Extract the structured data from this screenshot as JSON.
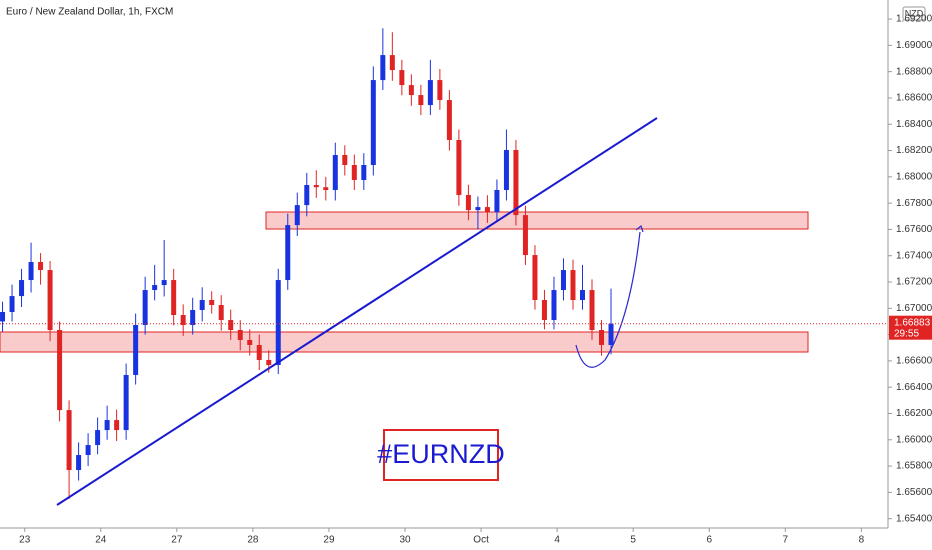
{
  "chart_data": {
    "type": "candlestick",
    "title": "Euro / New Zealand Dollar, 1h, FXCM",
    "currency": "NZD",
    "symbol": "#EURNZD",
    "last_price": 1.66883,
    "countdown": "29:55",
    "up_color": "#1a33e0",
    "down_color": "#e02424",
    "x": [
      -7,
      -4,
      -1,
      2,
      5,
      8,
      11,
      14,
      17,
      20,
      23,
      26,
      29,
      32,
      35,
      38,
      41,
      44,
      47,
      50,
      53,
      56,
      59,
      62,
      65,
      68,
      71,
      74,
      77,
      80,
      83,
      86,
      89,
      92,
      95,
      98,
      101,
      104,
      107,
      110,
      113,
      116,
      119,
      122,
      125,
      128,
      131,
      134,
      137,
      140,
      143,
      146,
      149,
      152,
      155,
      158,
      161,
      164,
      167,
      170,
      173,
      176,
      179,
      182,
      185
    ],
    "open": [
      1.669,
      1.66972,
      1.67093,
      1.67215,
      1.67352,
      1.67291,
      1.66835,
      1.66226,
      1.6577,
      1.65884,
      1.6596,
      1.66074,
      1.6615,
      1.66074,
      1.66493,
      1.66873,
      1.67139,
      1.67177,
      1.67215,
      1.66949,
      1.66873,
      1.66987,
      1.67063,
      1.67025,
      1.66911,
      1.66835,
      1.66759,
      1.66721,
      1.66607,
      1.66569,
      1.67215,
      1.67633,
      1.67785,
      1.67938,
      1.67921,
      1.679,
      1.68166,
      1.6809,
      1.67976,
      1.6809,
      1.68736,
      1.68926,
      1.68812,
      1.68698,
      1.68622,
      1.68546,
      1.68736,
      1.68584,
      1.6828,
      1.67862,
      1.67747,
      1.6777,
      1.67731,
      1.679,
      1.68204,
      1.67709,
      1.67405,
      1.67063,
      1.66911,
      1.67139,
      1.67291,
      1.67063,
      1.67139,
      1.66835,
      1.66721
    ],
    "high": [
      1.6705,
      1.6718,
      1.673,
      1.675,
      1.6742,
      1.6736,
      1.669,
      1.663,
      1.6598,
      1.6605,
      1.6617,
      1.6626,
      1.6623,
      1.6658,
      1.6696,
      1.6724,
      1.6733,
      1.6752,
      1.673,
      1.6703,
      1.6708,
      1.6716,
      1.6713,
      1.671,
      1.6699,
      1.6691,
      1.6684,
      1.668,
      1.6668,
      1.673,
      1.6772,
      1.6788,
      1.6803,
      1.6805,
      1.68,
      1.6826,
      1.6824,
      1.6817,
      1.6818,
      1.6884,
      1.6913,
      1.691,
      1.6889,
      1.6878,
      1.687,
      1.6889,
      1.6882,
      1.6866,
      1.6836,
      1.6794,
      1.6785,
      1.6786,
      1.6798,
      1.6836,
      1.6828,
      1.6778,
      1.6748,
      1.6714,
      1.6724,
      1.6738,
      1.6737,
      1.6733,
      1.6722,
      1.6691,
      1.6715
    ],
    "low": [
      1.6682,
      1.669,
      1.6701,
      1.6712,
      1.6718,
      1.6675,
      1.6614,
      1.6555,
      1.6569,
      1.658,
      1.6589,
      1.66,
      1.6599,
      1.66,
      1.6642,
      1.668,
      1.6706,
      1.6709,
      1.6687,
      1.6679,
      1.668,
      1.669,
      1.6696,
      1.6683,
      1.6676,
      1.6668,
      1.6664,
      1.6653,
      1.6651,
      1.665,
      1.6714,
      1.6755,
      1.677,
      1.6784,
      1.6782,
      1.6782,
      1.6801,
      1.679,
      1.679,
      1.6801,
      1.6866,
      1.6873,
      1.6862,
      1.6854,
      1.6847,
      1.6847,
      1.6851,
      1.682,
      1.6778,
      1.6767,
      1.676,
      1.6765,
      1.6766,
      1.6782,
      1.6763,
      1.6733,
      1.6699,
      1.6684,
      1.6684,
      1.6706,
      1.6699,
      1.6699,
      1.6676,
      1.6664,
      1.6665
    ],
    "close": [
      1.66972,
      1.67093,
      1.67215,
      1.67352,
      1.67291,
      1.66835,
      1.66226,
      1.6577,
      1.65884,
      1.6596,
      1.66074,
      1.6615,
      1.66074,
      1.66493,
      1.66873,
      1.67139,
      1.67177,
      1.67215,
      1.66949,
      1.66873,
      1.66987,
      1.67063,
      1.67025,
      1.66911,
      1.66835,
      1.66759,
      1.66721,
      1.66607,
      1.66569,
      1.67215,
      1.67633,
      1.67785,
      1.67938,
      1.67921,
      1.679,
      1.68166,
      1.6809,
      1.67976,
      1.6809,
      1.68736,
      1.68926,
      1.68812,
      1.68698,
      1.68622,
      1.68546,
      1.68736,
      1.68584,
      1.6828,
      1.67862,
      1.67747,
      1.6777,
      1.67731,
      1.679,
      1.68204,
      1.67709,
      1.67405,
      1.67063,
      1.66911,
      1.67139,
      1.67291,
      1.67063,
      1.67139,
      1.66835,
      1.66721,
      1.66883
    ],
    "xlim": [
      -7.8,
      272.4
    ],
    "xticks": [
      {
        "value": 0,
        "label": "23"
      },
      {
        "value": 24,
        "label": "24"
      },
      {
        "value": 48,
        "label": "27"
      },
      {
        "value": 72,
        "label": "28"
      },
      {
        "value": 96,
        "label": "29"
      },
      {
        "value": 120,
        "label": "30"
      },
      {
        "value": 144,
        "label": "Oct"
      },
      {
        "value": 168,
        "label": "4"
      },
      {
        "value": 192,
        "label": "5"
      },
      {
        "value": 216,
        "label": "6"
      },
      {
        "value": 240,
        "label": "7"
      },
      {
        "value": 264,
        "label": "8"
      }
    ],
    "ylim": [
      1.65329,
      1.69345
    ],
    "yticks": [
      {
        "value": 1.654,
        "label": "1.65400"
      },
      {
        "value": 1.656,
        "label": "1.65600"
      },
      {
        "value": 1.658,
        "label": "1.65800"
      },
      {
        "value": 1.66,
        "label": "1.66000"
      },
      {
        "value": 1.662,
        "label": "1.66200"
      },
      {
        "value": 1.664,
        "label": "1.66400"
      },
      {
        "value": 1.666,
        "label": "1.66600"
      },
      {
        "value": 1.668,
        "label": "1.66800"
      },
      {
        "value": 1.67,
        "label": "1.67000"
      },
      {
        "value": 1.672,
        "label": "1.67200"
      },
      {
        "value": 1.674,
        "label": "1.67400"
      },
      {
        "value": 1.676,
        "label": "1.67600"
      },
      {
        "value": 1.678,
        "label": "1.67800"
      },
      {
        "value": 1.68,
        "label": "1.68000"
      },
      {
        "value": 1.682,
        "label": "1.68200"
      },
      {
        "value": 1.684,
        "label": "1.68400"
      },
      {
        "value": 1.686,
        "label": "1.68600"
      },
      {
        "value": 1.688,
        "label": "1.68800"
      },
      {
        "value": 1.69,
        "label": "1.69000"
      },
      {
        "value": 1.692,
        "label": "1.69200"
      }
    ]
  }
}
